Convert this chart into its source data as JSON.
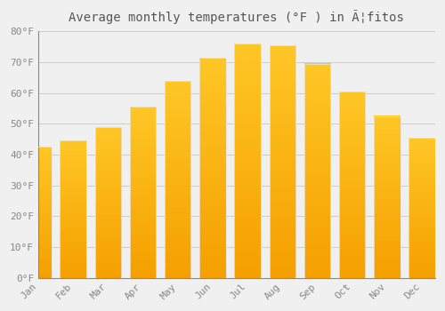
{
  "title": "Average monthly temperatures (°F ) in Ã¦fitos",
  "months": [
    "Jan",
    "Feb",
    "Mar",
    "Apr",
    "May",
    "Jun",
    "Jul",
    "Aug",
    "Sep",
    "Oct",
    "Nov",
    "Dec"
  ],
  "values": [
    42.5,
    44.5,
    49.0,
    55.5,
    64.0,
    71.5,
    76.0,
    75.5,
    69.5,
    60.5,
    52.5,
    45.5
  ],
  "bar_color_top": "#FFC726",
  "bar_color_bottom": "#F5A000",
  "bar_edge_color": "#E8E8E8",
  "background_color": "#F0F0F0",
  "ylim": [
    0,
    80
  ],
  "yticks": [
    0,
    10,
    20,
    30,
    40,
    50,
    60,
    70,
    80
  ],
  "ytick_labels": [
    "0°F",
    "10°F",
    "20°F",
    "30°F",
    "40°F",
    "50°F",
    "60°F",
    "70°F",
    "80°F"
  ],
  "tick_color": "#888888",
  "grid_color": "#CCCCCC",
  "title_fontsize": 10,
  "tick_fontsize": 8,
  "title_color": "#555555"
}
